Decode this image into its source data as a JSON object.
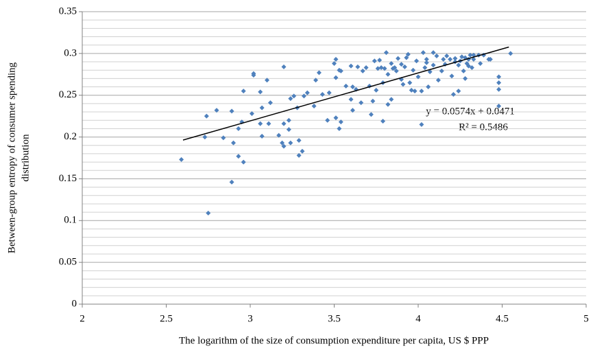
{
  "chart_data": {
    "type": "scatter",
    "xlabel": "The logarithm of the size of consumption expenditure per capita, US $ PPP",
    "ylabel": [
      "Between-group entropy of consumer spending",
      "distribution"
    ],
    "annotations": [
      "y = 0.0574x + 0.0471",
      "R² = 0.5486"
    ],
    "trendline": {
      "slope": 0.0574,
      "intercept": 0.0471,
      "x_start": 2.6,
      "x_end": 4.54,
      "color": "#000000"
    },
    "xlim": [
      2,
      5
    ],
    "xticks": [
      2,
      2.5,
      3,
      3.5,
      4,
      4.5,
      5
    ],
    "ylim": [
      0,
      0.35
    ],
    "yticks": [
      0,
      0.05,
      0.1,
      0.15,
      0.2,
      0.25,
      0.3,
      0.35
    ],
    "grid": true,
    "series": [
      {
        "color": "#4f81bd",
        "x": [
          2.59,
          2.74,
          2.73,
          2.75,
          2.8,
          2.84,
          2.89,
          2.9,
          2.89,
          2.93,
          2.93,
          2.96,
          2.95,
          2.96,
          3.02,
          3.02,
          3.01,
          3.06,
          3.06,
          3.07,
          3.07,
          3.1,
          3.11,
          3.12,
          3.17,
          3.19,
          3.2,
          3.2,
          3.2,
          3.23,
          3.23,
          3.24,
          3.24,
          3.26,
          3.28,
          3.29,
          3.29,
          3.31,
          3.32,
          3.34,
          3.38,
          3.39,
          3.41,
          3.43,
          3.46,
          3.47,
          3.5,
          3.51,
          3.51,
          3.51,
          3.53,
          3.54,
          3.54,
          3.53,
          3.57,
          3.6,
          3.6,
          3.61,
          3.61,
          3.63,
          3.64,
          3.66,
          3.67,
          3.69,
          3.71,
          3.72,
          3.73,
          3.74,
          3.75,
          3.76,
          3.77,
          3.79,
          3.79,
          3.8,
          3.81,
          3.82,
          3.82,
          3.84,
          3.84,
          3.86,
          3.87,
          3.88,
          3.9,
          3.91,
          3.92,
          3.93,
          3.94,
          3.95,
          3.96,
          3.97,
          3.98,
          3.99,
          4.0,
          4.02,
          4.02,
          4.03,
          4.04,
          4.05,
          4.06,
          4.07,
          4.09,
          4.09,
          4.11,
          4.12,
          4.14,
          4.16,
          4.17,
          4.19,
          4.2,
          4.21,
          4.22,
          4.24,
          4.24,
          4.26,
          4.27,
          4.28,
          4.29,
          4.3,
          4.31,
          4.32,
          4.33,
          4.36,
          4.37,
          4.39,
          4.42,
          4.43,
          4.48,
          4.48,
          4.48,
          4.48,
          4.55,
          4.25,
          4.28,
          4.15,
          3.9,
          3.85,
          4.05,
          4.33,
          4.3,
          4.22,
          3.78
        ],
        "values": [
          0.173,
          0.225,
          0.2,
          0.109,
          0.232,
          0.199,
          0.231,
          0.193,
          0.146,
          0.21,
          0.177,
          0.17,
          0.218,
          0.255,
          0.274,
          0.276,
          0.228,
          0.254,
          0.216,
          0.235,
          0.201,
          0.268,
          0.216,
          0.241,
          0.202,
          0.193,
          0.189,
          0.284,
          0.216,
          0.209,
          0.22,
          0.246,
          0.193,
          0.249,
          0.235,
          0.178,
          0.196,
          0.183,
          0.249,
          0.253,
          0.237,
          0.268,
          0.277,
          0.251,
          0.22,
          0.253,
          0.288,
          0.271,
          0.223,
          0.293,
          0.28,
          0.279,
          0.218,
          0.21,
          0.261,
          0.285,
          0.245,
          0.232,
          0.26,
          0.257,
          0.284,
          0.241,
          0.279,
          0.283,
          0.261,
          0.227,
          0.243,
          0.291,
          0.256,
          0.282,
          0.292,
          0.265,
          0.219,
          0.282,
          0.301,
          0.275,
          0.239,
          0.288,
          0.245,
          0.283,
          0.279,
          0.294,
          0.269,
          0.263,
          0.284,
          0.295,
          0.299,
          0.265,
          0.256,
          0.28,
          0.255,
          0.291,
          0.272,
          0.255,
          0.215,
          0.301,
          0.283,
          0.289,
          0.26,
          0.278,
          0.301,
          0.286,
          0.297,
          0.268,
          0.279,
          0.287,
          0.297,
          0.293,
          0.273,
          0.251,
          0.294,
          0.255,
          0.286,
          0.296,
          0.279,
          0.27,
          0.288,
          0.293,
          0.298,
          0.283,
          0.298,
          0.298,
          0.288,
          0.298,
          0.293,
          0.293,
          0.237,
          0.272,
          0.265,
          0.257,
          0.3,
          0.291,
          0.295,
          0.293,
          0.287,
          0.282,
          0.293,
          0.293,
          0.285,
          0.29,
          0.283
        ]
      }
    ]
  }
}
